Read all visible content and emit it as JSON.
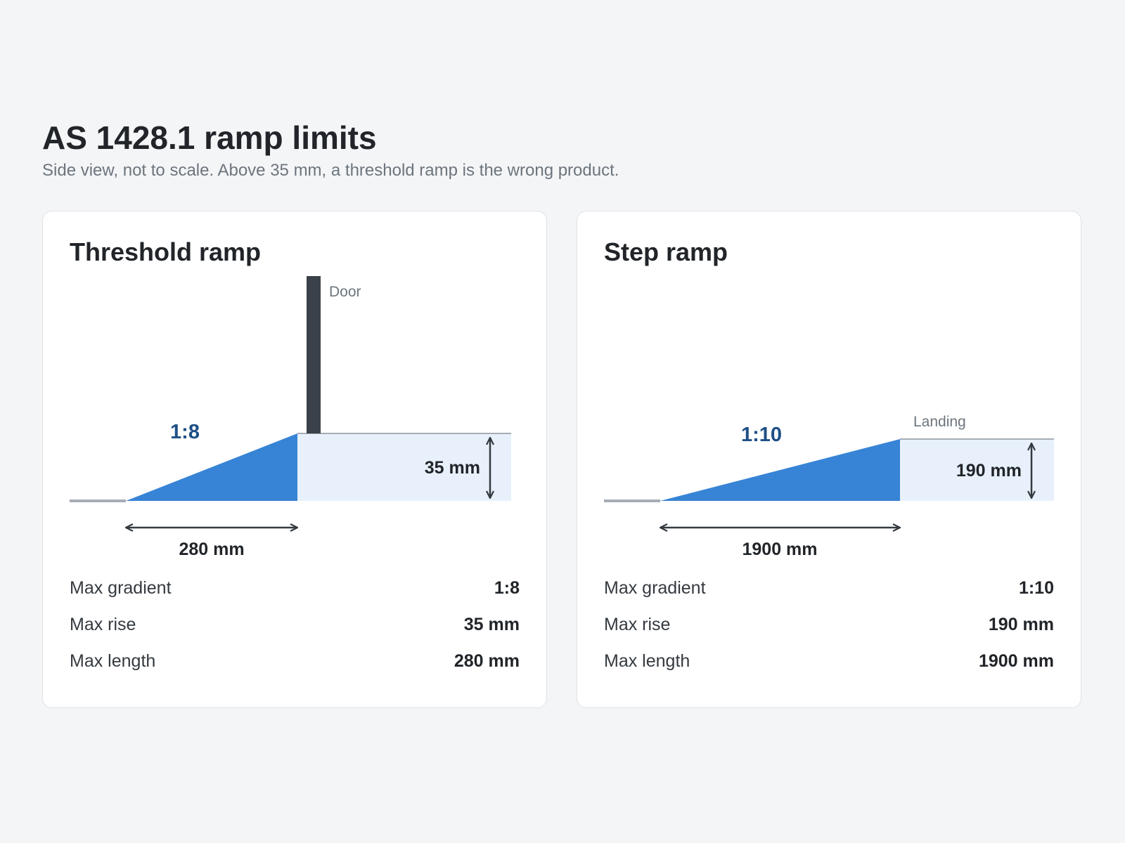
{
  "header": {
    "title": "AS 1428.1 ramp limits",
    "subtitle": "Side view, not to scale. Above 35 mm, a threshold ramp is the wrong product."
  },
  "colors": {
    "ramp_fill": "#3784d6",
    "platform_fill": "#e8f1fb",
    "door_fill": "#3a4149",
    "ground_line": "#a7adb5",
    "ratio_text": "#1d4f86",
    "arrow": "#343a40"
  },
  "cards": [
    {
      "title": "Threshold ramp",
      "diagram": {
        "gradient_label": "1:8",
        "rise_label": "35 mm",
        "length_label": "280 mm",
        "feature_label": "Door"
      },
      "specs": [
        {
          "label": "Max gradient",
          "value": "1:8"
        },
        {
          "label": "Max rise",
          "value": "35 mm"
        },
        {
          "label": "Max length",
          "value": "280 mm"
        }
      ]
    },
    {
      "title": "Step ramp",
      "diagram": {
        "gradient_label": "1:10",
        "rise_label": "190 mm",
        "length_label": "1900 mm",
        "feature_label": "Landing"
      },
      "specs": [
        {
          "label": "Max gradient",
          "value": "1:10"
        },
        {
          "label": "Max rise",
          "value": "190 mm"
        },
        {
          "label": "Max length",
          "value": "1900 mm"
        }
      ]
    }
  ]
}
